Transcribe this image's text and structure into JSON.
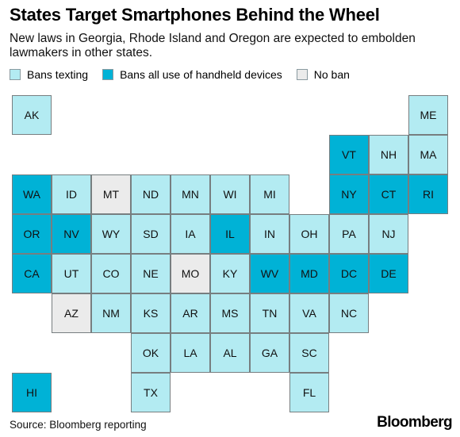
{
  "title": "States Target Smartphones Behind the Wheel",
  "subtitle": "New laws in Georgia, Rhode Island and Oregon are expected to embolden lawmakers in other states.",
  "legend": [
    {
      "key": "texting",
      "label": "Bans texting",
      "color": "#b3ebf2"
    },
    {
      "key": "handheld",
      "label": "Bans all use of handheld devices",
      "color": "#00b2d6"
    },
    {
      "key": "none",
      "label": "No ban",
      "color": "#ebebeb"
    }
  ],
  "chart_data": {
    "type": "tile-map",
    "columns": 11,
    "rows": 8,
    "states": [
      {
        "code": "AK",
        "col": 0,
        "row": 0,
        "category": "texting"
      },
      {
        "code": "ME",
        "col": 10,
        "row": 0,
        "category": "texting"
      },
      {
        "code": "VT",
        "col": 8,
        "row": 1,
        "category": "handheld"
      },
      {
        "code": "NH",
        "col": 9,
        "row": 1,
        "category": "texting"
      },
      {
        "code": "MA",
        "col": 10,
        "row": 1,
        "category": "texting"
      },
      {
        "code": "WA",
        "col": 0,
        "row": 2,
        "category": "handheld"
      },
      {
        "code": "ID",
        "col": 1,
        "row": 2,
        "category": "texting"
      },
      {
        "code": "MT",
        "col": 2,
        "row": 2,
        "category": "none"
      },
      {
        "code": "ND",
        "col": 3,
        "row": 2,
        "category": "texting"
      },
      {
        "code": "MN",
        "col": 4,
        "row": 2,
        "category": "texting"
      },
      {
        "code": "WI",
        "col": 5,
        "row": 2,
        "category": "texting"
      },
      {
        "code": "MI",
        "col": 6,
        "row": 2,
        "category": "texting"
      },
      {
        "code": "NY",
        "col": 8,
        "row": 2,
        "category": "handheld"
      },
      {
        "code": "CT",
        "col": 9,
        "row": 2,
        "category": "handheld"
      },
      {
        "code": "RI",
        "col": 10,
        "row": 2,
        "category": "handheld"
      },
      {
        "code": "OR",
        "col": 0,
        "row": 3,
        "category": "handheld"
      },
      {
        "code": "NV",
        "col": 1,
        "row": 3,
        "category": "handheld"
      },
      {
        "code": "WY",
        "col": 2,
        "row": 3,
        "category": "texting"
      },
      {
        "code": "SD",
        "col": 3,
        "row": 3,
        "category": "texting"
      },
      {
        "code": "IA",
        "col": 4,
        "row": 3,
        "category": "texting"
      },
      {
        "code": "IL",
        "col": 5,
        "row": 3,
        "category": "handheld"
      },
      {
        "code": "IN",
        "col": 6,
        "row": 3,
        "category": "texting"
      },
      {
        "code": "OH",
        "col": 7,
        "row": 3,
        "category": "texting"
      },
      {
        "code": "PA",
        "col": 8,
        "row": 3,
        "category": "texting"
      },
      {
        "code": "NJ",
        "col": 9,
        "row": 3,
        "category": "texting"
      },
      {
        "code": "CA",
        "col": 0,
        "row": 4,
        "category": "handheld"
      },
      {
        "code": "UT",
        "col": 1,
        "row": 4,
        "category": "texting"
      },
      {
        "code": "CO",
        "col": 2,
        "row": 4,
        "category": "texting"
      },
      {
        "code": "NE",
        "col": 3,
        "row": 4,
        "category": "texting"
      },
      {
        "code": "MO",
        "col": 4,
        "row": 4,
        "category": "none"
      },
      {
        "code": "KY",
        "col": 5,
        "row": 4,
        "category": "texting"
      },
      {
        "code": "WV",
        "col": 6,
        "row": 4,
        "category": "handheld"
      },
      {
        "code": "MD",
        "col": 7,
        "row": 4,
        "category": "handheld"
      },
      {
        "code": "DC",
        "col": 8,
        "row": 4,
        "category": "handheld"
      },
      {
        "code": "DE",
        "col": 9,
        "row": 4,
        "category": "handheld"
      },
      {
        "code": "AZ",
        "col": 1,
        "row": 5,
        "category": "none"
      },
      {
        "code": "NM",
        "col": 2,
        "row": 5,
        "category": "texting"
      },
      {
        "code": "KS",
        "col": 3,
        "row": 5,
        "category": "texting"
      },
      {
        "code": "AR",
        "col": 4,
        "row": 5,
        "category": "texting"
      },
      {
        "code": "MS",
        "col": 5,
        "row": 5,
        "category": "texting"
      },
      {
        "code": "TN",
        "col": 6,
        "row": 5,
        "category": "texting"
      },
      {
        "code": "VA",
        "col": 7,
        "row": 5,
        "category": "texting"
      },
      {
        "code": "NC",
        "col": 8,
        "row": 5,
        "category": "texting"
      },
      {
        "code": "OK",
        "col": 3,
        "row": 6,
        "category": "texting"
      },
      {
        "code": "LA",
        "col": 4,
        "row": 6,
        "category": "texting"
      },
      {
        "code": "AL",
        "col": 5,
        "row": 6,
        "category": "texting"
      },
      {
        "code": "GA",
        "col": 6,
        "row": 6,
        "category": "texting"
      },
      {
        "code": "SC",
        "col": 7,
        "row": 6,
        "category": "texting"
      },
      {
        "code": "HI",
        "col": 0,
        "row": 7,
        "category": "handheld"
      },
      {
        "code": "TX",
        "col": 3,
        "row": 7,
        "category": "texting"
      },
      {
        "code": "FL",
        "col": 7,
        "row": 7,
        "category": "texting"
      }
    ]
  },
  "source": "Source: Bloomberg reporting",
  "brand": "Bloomberg"
}
